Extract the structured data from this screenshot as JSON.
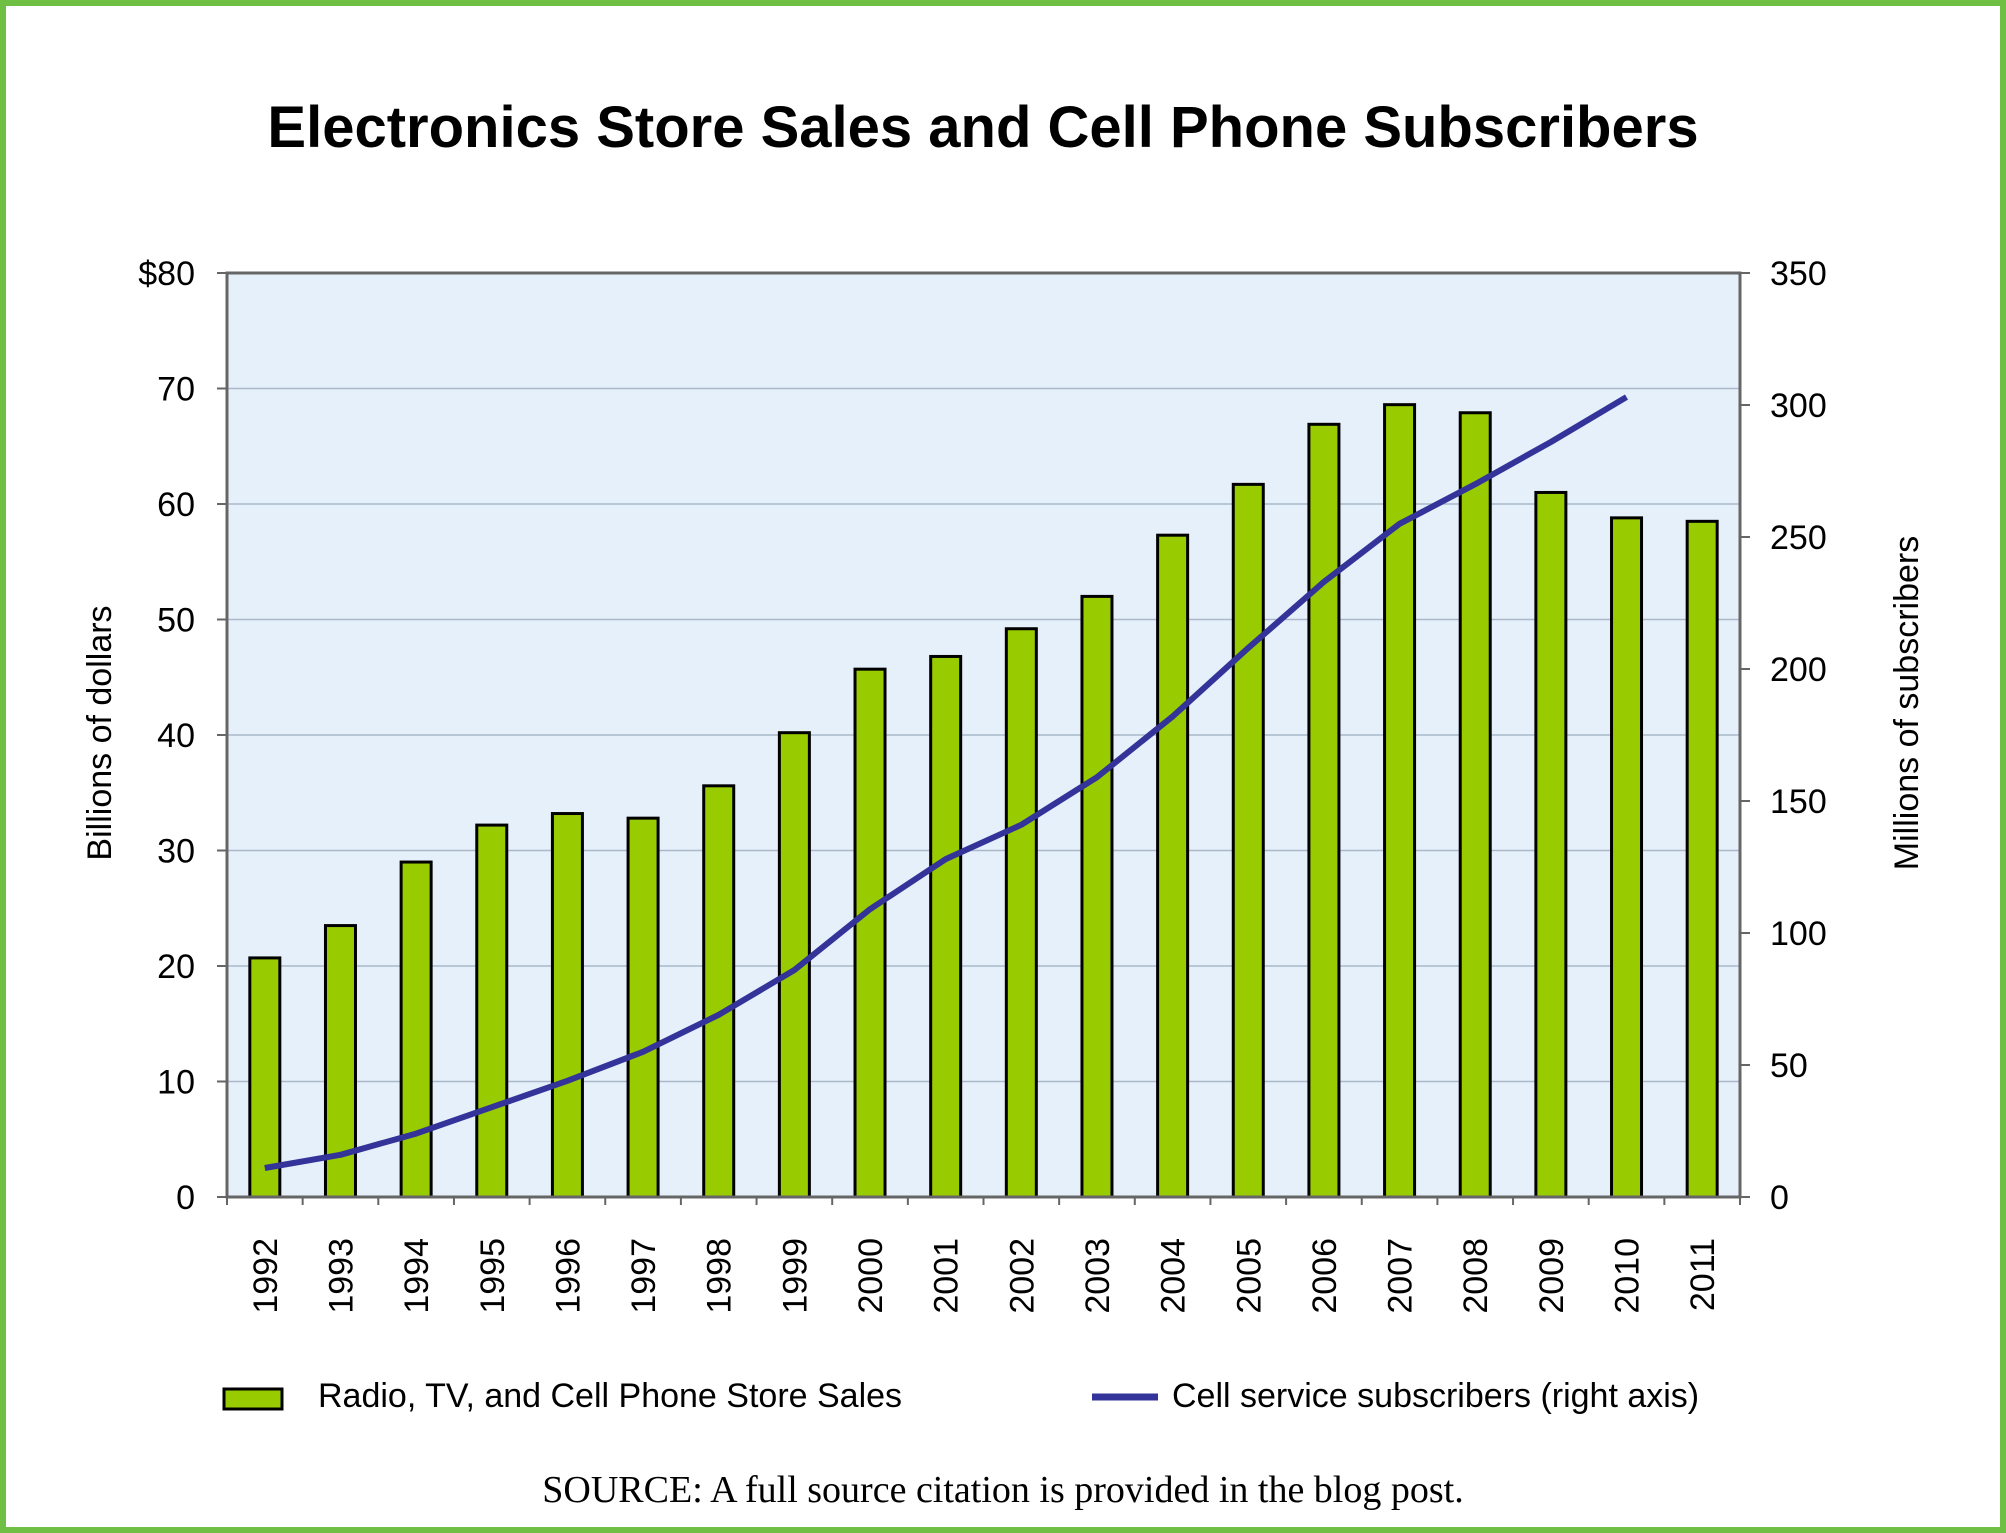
{
  "colors": {
    "border": "#6ebf44",
    "plot_bg": "#e6f0fb",
    "bar_fill": "#99cc00",
    "bar_stroke": "#000000",
    "line": "#333399",
    "grid": "#a9b9c9",
    "axis": "#666666"
  },
  "chart_data": {
    "type": "bar",
    "title": "Electronics Store Sales and Cell Phone Subscribers",
    "categories": [
      "1992",
      "1993",
      "1994",
      "1995",
      "1996",
      "1997",
      "1998",
      "1999",
      "2000",
      "2001",
      "2002",
      "2003",
      "2004",
      "2005",
      "2006",
      "2007",
      "2008",
      "2009",
      "2010",
      "2011"
    ],
    "series": [
      {
        "name": "Radio, TV, and Cell Phone Store Sales",
        "type": "bar",
        "axis": "left",
        "values": [
          20.7,
          23.5,
          29.0,
          32.2,
          33.2,
          32.8,
          35.6,
          40.2,
          45.7,
          46.8,
          49.2,
          52.0,
          57.3,
          61.7,
          66.9,
          68.6,
          67.9,
          61.0,
          58.8,
          58.5
        ]
      },
      {
        "name": "Cell service subscribers (right axis)",
        "type": "line",
        "axis": "right",
        "values": [
          11,
          16,
          24,
          34,
          44,
          55,
          69,
          86,
          109,
          128,
          141,
          159,
          182,
          208,
          233,
          255,
          270,
          286,
          303,
          null
        ]
      }
    ],
    "y_left": {
      "label": "Billions of dollars",
      "range": [
        0,
        80
      ],
      "ticks": [
        0,
        10,
        20,
        30,
        40,
        50,
        60,
        70,
        80
      ],
      "tick_labels": [
        "0",
        "10",
        "20",
        "30",
        "40",
        "50",
        "60",
        "70",
        "$80"
      ]
    },
    "y_right": {
      "label": "Millions of subscribers",
      "range": [
        0,
        350
      ],
      "ticks": [
        0,
        50,
        100,
        150,
        200,
        250,
        300,
        350
      ],
      "tick_labels": [
        "0",
        "50",
        "100",
        "150",
        "200",
        "250",
        "300",
        "350"
      ]
    },
    "grid": true,
    "legend": {
      "position": "bottom",
      "entries": [
        "Radio, TV, and Cell Phone Store Sales",
        "Cell service subscribers (right axis)"
      ]
    },
    "source": "SOURCE: A full source citation is provided in the blog post."
  }
}
